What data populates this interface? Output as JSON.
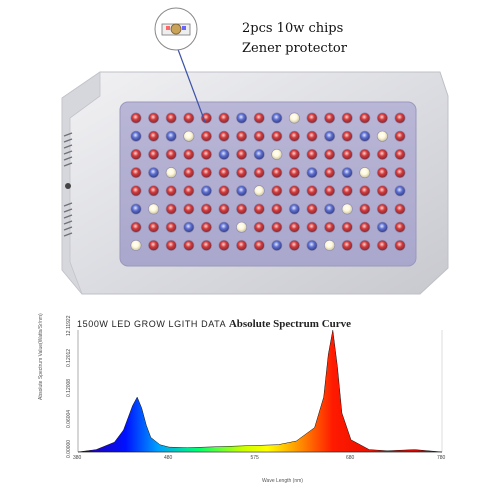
{
  "callout": {
    "line1": "2pcs 10w chips",
    "line2": "Zener protector"
  },
  "spectrum": {
    "title_prefix": "1500W   LED   GROW   LGITH   DATA",
    "title_main": "Absolute Spectrum Curve",
    "ylabel": "Absolute Spectrum Value(Watts/Sr/nm)",
    "xlabel": "Wave Length (nm)",
    "x_ticks": [
      "380",
      "480",
      "575",
      "680",
      "780"
    ],
    "y_ticks": [
      "0.00000",
      "0.06004",
      "0.12008",
      "0.12012",
      "12.11922"
    ]
  },
  "chart_data": {
    "type": "area",
    "title": "1500W LED GROW LGITH DATA Absolute Spectrum Curve",
    "xlabel": "Wave Length (nm)",
    "ylabel": "Absolute Spectrum Value(Watts/Sr/nm)",
    "xlim": [
      380,
      780
    ],
    "x": [
      380,
      400,
      420,
      430,
      440,
      445,
      450,
      455,
      460,
      470,
      480,
      500,
      520,
      560,
      600,
      620,
      640,
      650,
      655,
      660,
      665,
      670,
      680,
      700,
      720,
      750,
      780
    ],
    "series": [
      {
        "values": [
          0,
          0.02,
          0.08,
          0.18,
          0.38,
          0.45,
          0.36,
          0.22,
          0.12,
          0.06,
          0.04,
          0.035,
          0.04,
          0.05,
          0.06,
          0.09,
          0.2,
          0.45,
          0.8,
          1.0,
          0.7,
          0.32,
          0.1,
          0.02,
          0.01,
          0.02,
          0
        ]
      }
    ]
  }
}
